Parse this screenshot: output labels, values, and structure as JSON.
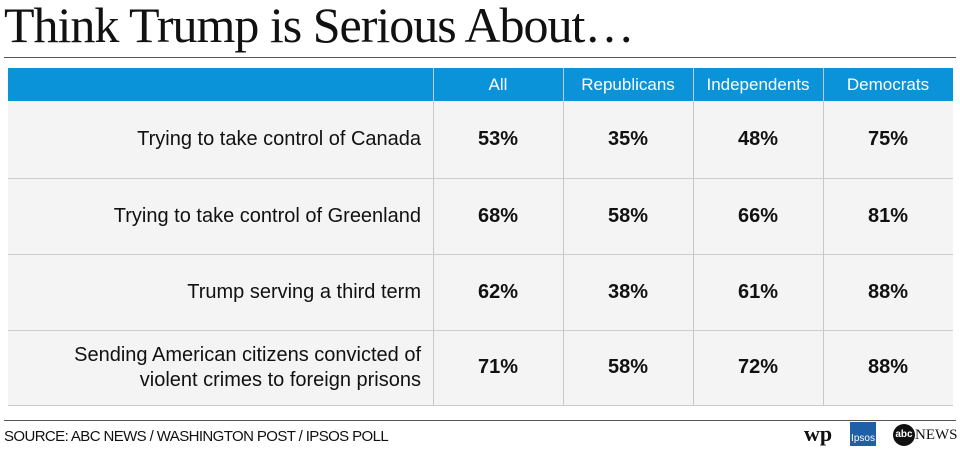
{
  "header": {
    "title": "Think Trump is Serious About…"
  },
  "table": {
    "columns": [
      "All",
      "Republicans",
      "Independents",
      "Democrats"
    ],
    "rows": [
      {
        "label": "Trying to take control of Canada",
        "cells": [
          "53%",
          "35%",
          "48%",
          "75%"
        ]
      },
      {
        "label": "Trying to take control of Greenland",
        "cells": [
          "68%",
          "58%",
          "66%",
          "81%"
        ]
      },
      {
        "label": "Trump serving a third term",
        "cells": [
          "62%",
          "38%",
          "61%",
          "88%"
        ]
      },
      {
        "label": "Sending American citizens convicted of violent crimes to foreign prisons",
        "cells": [
          "71%",
          "58%",
          "72%",
          "88%"
        ]
      }
    ]
  },
  "footer": {
    "source": "SOURCE: ABC NEWS / WASHINGTON POST / IPSOS POLL",
    "logos": [
      "wp",
      "Ipsos",
      "abc",
      "NEWS"
    ]
  }
}
